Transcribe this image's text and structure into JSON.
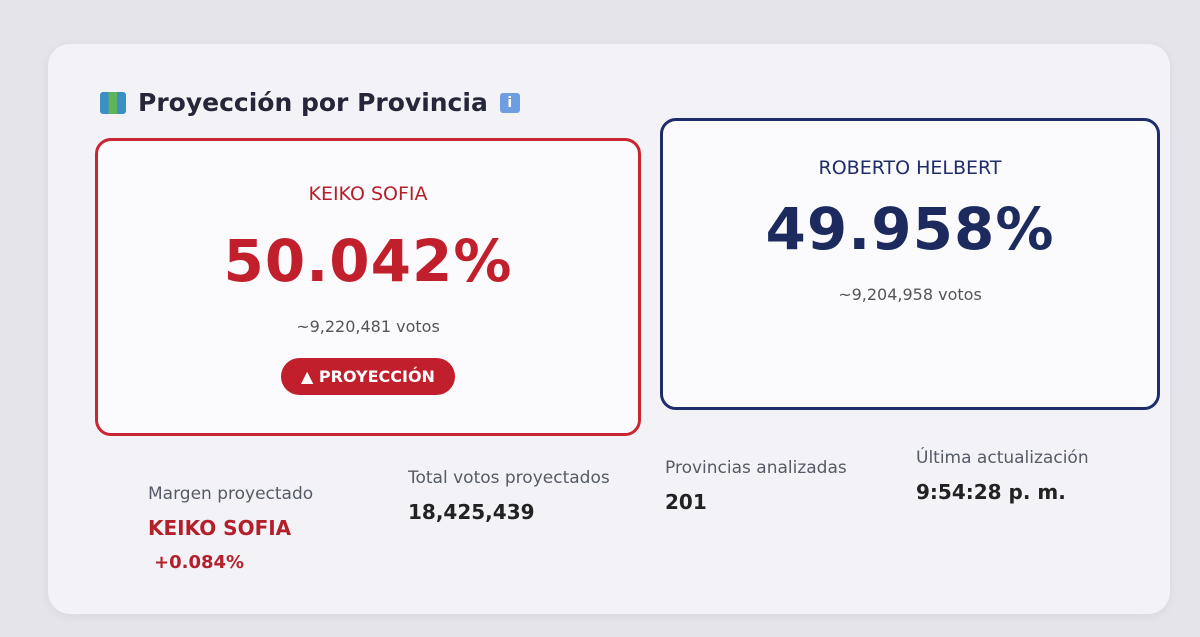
{
  "header": {
    "title": "Proyección por Provincia"
  },
  "candidates": [
    {
      "name": "KEIKO SOFIA",
      "percent": "50.042%",
      "votes": "~9,220,481 votos",
      "badge": "▲ PROYECCIÓN"
    },
    {
      "name": "ROBERTO HELBERT",
      "percent": "49.958%",
      "votes": "~9,204,958 votos"
    }
  ],
  "stats": [
    {
      "label": "Margen proyectado",
      "value": "KEIKO SOFIA",
      "detail": "+0.084%"
    },
    {
      "label": "Total votos proyectados",
      "value": "18,425,439"
    },
    {
      "label": "Provincias analizadas",
      "value": "201"
    },
    {
      "label": "Última actualización",
      "value": "9:54:28 p. m."
    }
  ]
}
